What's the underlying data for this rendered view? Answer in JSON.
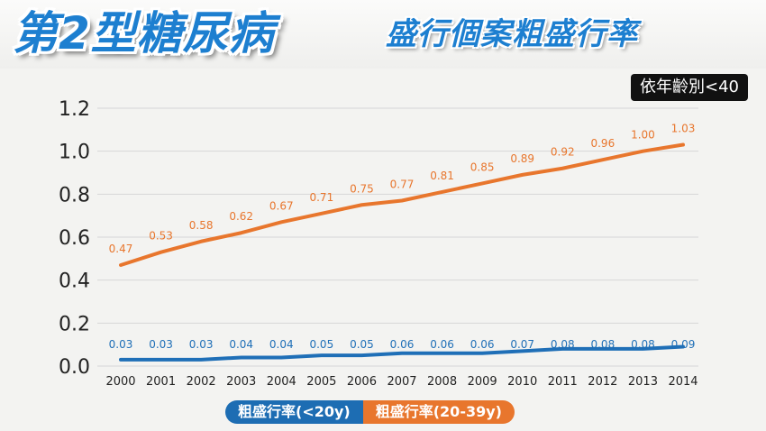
{
  "header": {
    "title_main": "第2型糖尿病",
    "title_sub": "盛行個案粗盛行率",
    "badge": "依年齡別<40"
  },
  "colors": {
    "series_under20": "#1f6fb7",
    "series_20_39": "#e8762d",
    "title_blue": "#1d7fd0"
  },
  "chart_data": {
    "type": "line",
    "x": [
      "2000",
      "2001",
      "2002",
      "2003",
      "2004",
      "2005",
      "2006",
      "2007",
      "2008",
      "2009",
      "2010",
      "2011",
      "2012",
      "2013",
      "2014"
    ],
    "ylim": [
      0,
      1.2
    ],
    "yticks": [
      "0.0",
      "0.2",
      "0.4",
      "0.6",
      "0.8",
      "1.0",
      "1.2"
    ],
    "grid": true,
    "legend_position": "bottom",
    "series": [
      {
        "name": "粗盛行率(<20y)",
        "color": "#1f6fb7",
        "values": [
          0.03,
          0.03,
          0.03,
          0.04,
          0.04,
          0.05,
          0.05,
          0.06,
          0.06,
          0.06,
          0.07,
          0.08,
          0.08,
          0.08,
          0.09
        ],
        "labels": [
          "0.03",
          "0.03",
          "0.03",
          "0.04",
          "0.04",
          "0.05",
          "0.05",
          "0.06",
          "0.06",
          "0.06",
          "0.07",
          "0.08",
          "0.08",
          "0.08",
          "0.09"
        ]
      },
      {
        "name": "粗盛行率(20-39y)",
        "color": "#e8762d",
        "values": [
          0.47,
          0.53,
          0.58,
          0.62,
          0.67,
          0.71,
          0.75,
          0.77,
          0.81,
          0.85,
          0.89,
          0.92,
          0.96,
          1.0,
          1.03
        ],
        "labels": [
          "0.47",
          "0.53",
          "0.58",
          "0.62",
          "0.67",
          "0.71",
          "0.75",
          "0.77",
          "0.81",
          "0.85",
          "0.89",
          "0.92",
          "0.96",
          "1.00",
          "1.03"
        ]
      }
    ]
  }
}
